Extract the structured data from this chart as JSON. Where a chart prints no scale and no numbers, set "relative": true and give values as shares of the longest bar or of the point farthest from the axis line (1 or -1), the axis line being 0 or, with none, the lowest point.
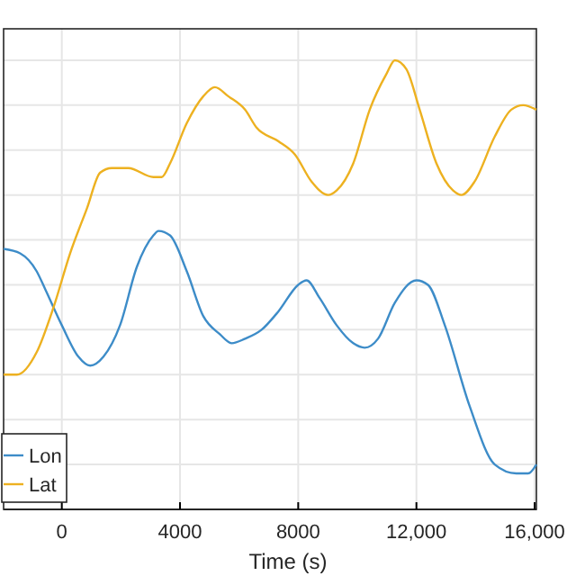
{
  "chart_data": {
    "type": "line",
    "xlabel": "Time (s)",
    "relative": true,
    "xlim": [
      -1970,
      16060
    ],
    "xticks": [
      0,
      4000,
      8000,
      {
        "value": 12000,
        "label": "12,000"
      },
      {
        "value": 16000,
        "label": "16,000"
      }
    ],
    "grid": true,
    "legend": "bottom left",
    "series": [
      {
        "name": "Lon",
        "color": "#3d8cc8",
        "x": [
          -1970,
          -1410,
          -850,
          -560,
          0,
          560,
          960,
          1410,
          1970,
          2540,
          3100,
          3270,
          3660,
          4230,
          4790,
          5350,
          5750,
          6200,
          6760,
          7320,
          8000,
          8280,
          8730,
          9300,
          9860,
          10250,
          10700,
          11270,
          12000,
          12390,
          12960,
          13800,
          14650,
          15380,
          15780,
          16060
        ],
        "values": [
          0.58,
          0.57,
          0.53,
          0.49,
          0.41,
          0.34,
          0.32,
          0.34,
          0.41,
          0.54,
          0.61,
          0.62,
          0.61,
          0.53,
          0.43,
          0.39,
          0.37,
          0.38,
          0.4,
          0.44,
          0.5,
          0.51,
          0.47,
          0.41,
          0.37,
          0.36,
          0.38,
          0.46,
          0.51,
          0.5,
          0.41,
          0.23,
          0.1,
          0.08,
          0.08,
          0.1
        ]
      },
      {
        "name": "Lat",
        "color": "#edb120",
        "x": [
          -1970,
          -1520,
          -850,
          -280,
          280,
          850,
          1300,
          1690,
          2250,
          3100,
          3380,
          3660,
          4230,
          4790,
          5180,
          5630,
          6200,
          6590,
          7320,
          7890,
          8450,
          9010,
          9300,
          9860,
          10420,
          10990,
          11270,
          11660,
          12110,
          12680,
          13240,
          13520,
          13970,
          14650,
          15210,
          15610,
          16060
        ],
        "values": [
          0.3,
          0.3,
          0.35,
          0.45,
          0.57,
          0.67,
          0.75,
          0.76,
          0.76,
          0.74,
          0.74,
          0.77,
          0.86,
          0.92,
          0.94,
          0.92,
          0.89,
          0.85,
          0.82,
          0.79,
          0.73,
          0.7,
          0.71,
          0.77,
          0.89,
          0.97,
          1.0,
          0.98,
          0.89,
          0.77,
          0.71,
          0.7,
          0.73,
          0.83,
          0.89,
          0.9,
          0.89
        ]
      }
    ]
  }
}
